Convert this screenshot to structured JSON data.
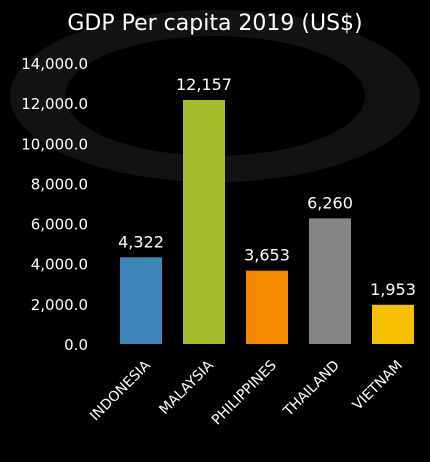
{
  "chart_data": {
    "type": "bar",
    "title": "GDP Per capita 2019 (US$)",
    "categories": [
      "INDONESIA",
      "MALAYSIA",
      "PHILIPPINES",
      "THAILAND",
      "VIETNAM"
    ],
    "values": [
      4322,
      12157,
      3653,
      6260,
      1953
    ],
    "data_labels": [
      "4,322",
      "12,157",
      "3,653",
      "6,260",
      "1,953"
    ],
    "colors": [
      "#3d87b8",
      "#a3bd2c",
      "#f28a00",
      "#858585",
      "#f5c000"
    ],
    "ylim": [
      0,
      14000
    ],
    "yticks": [
      0,
      2000,
      4000,
      6000,
      8000,
      10000,
      12000,
      14000
    ],
    "ytick_labels": [
      "0.0",
      "2,000.0",
      "4,000.0",
      "6,000.0",
      "8,000.0",
      "10,000.0",
      "12,000.0",
      "14,000.0"
    ],
    "grid": false,
    "legend": "none",
    "xlabel": "",
    "ylabel": ""
  }
}
